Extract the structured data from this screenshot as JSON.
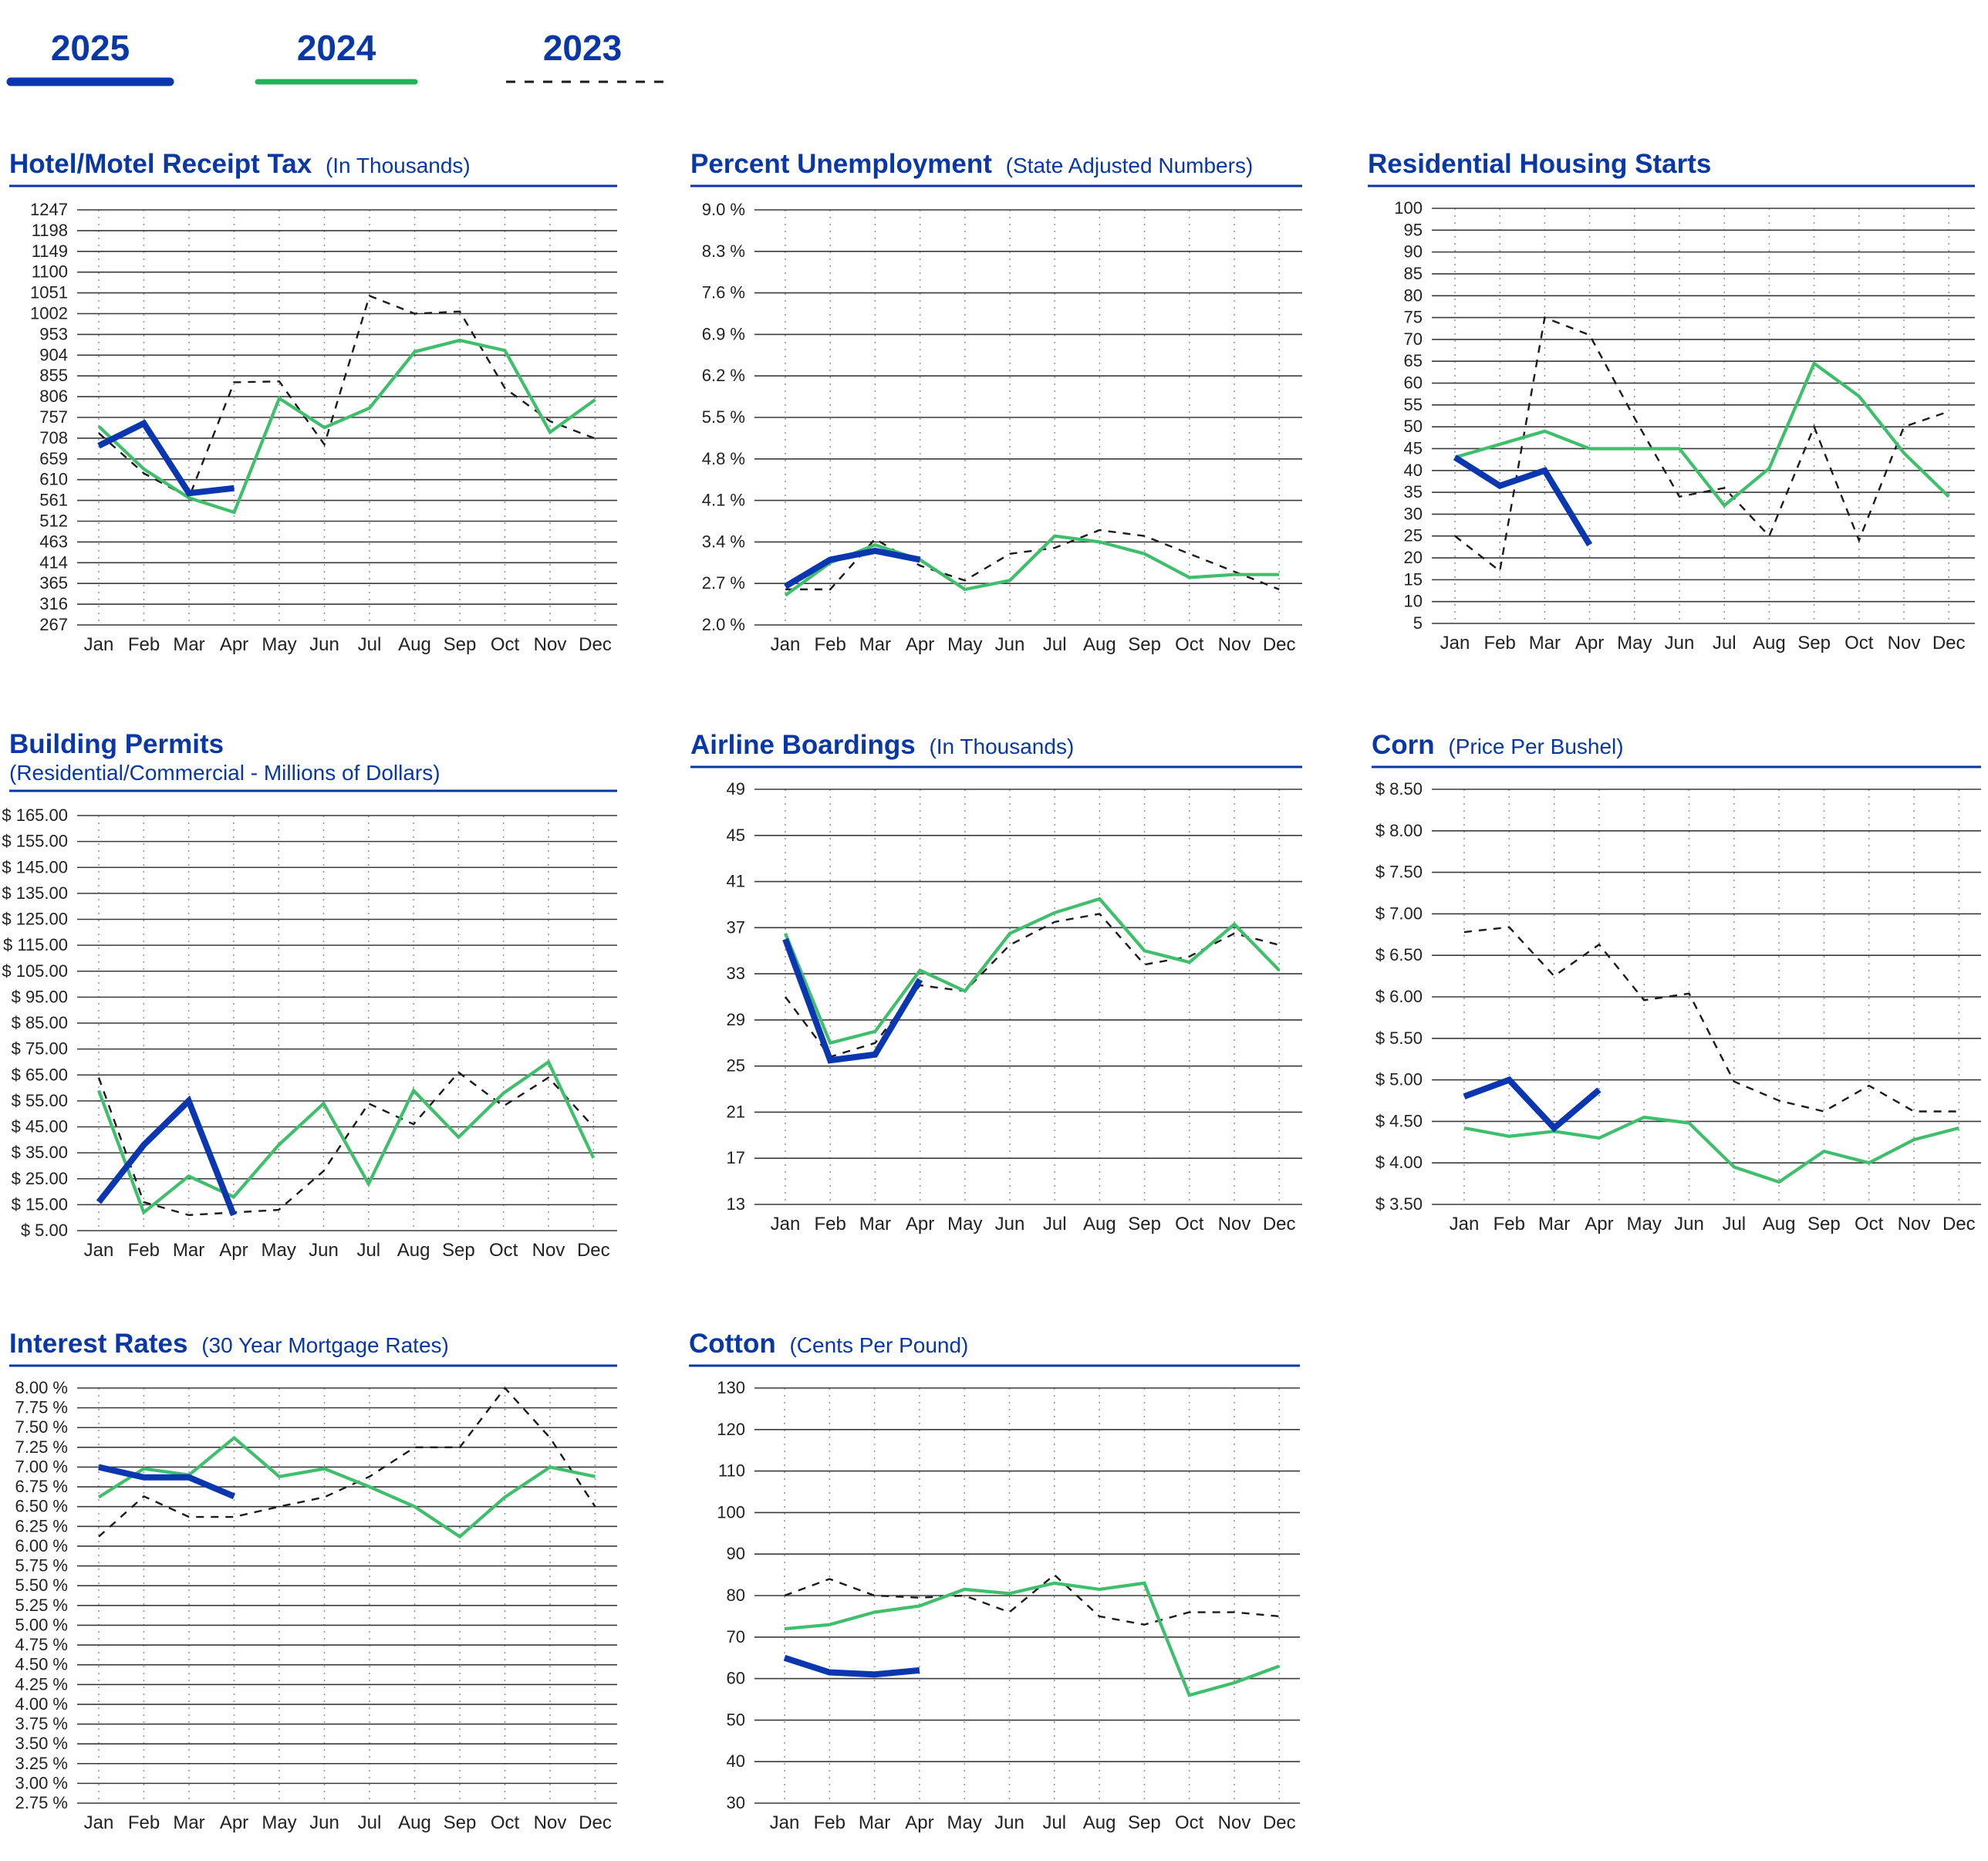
{
  "colors": {
    "y2025": "#0a37b0",
    "y2024": "#3fbf6b",
    "y2023": "#1a1a1a",
    "title": "#0a37a6",
    "grid": "#333333"
  },
  "legend": [
    {
      "label": "2025",
      "style": "thick-blue"
    },
    {
      "label": "2024",
      "style": "green"
    },
    {
      "label": "2023",
      "style": "dashed-black"
    }
  ],
  "chart_data": [
    {
      "type": "line",
      "title": "Hotel/Motel Receipt Tax",
      "subtitle": "(In Thousands)",
      "categories": [
        "Jan",
        "Feb",
        "Mar",
        "Apr",
        "May",
        "Jun",
        "Jul",
        "Aug",
        "Sep",
        "Oct",
        "Nov",
        "Dec"
      ],
      "yticks": [
        "1247",
        "1198",
        "1149",
        "1100",
        "1051",
        "1002",
        "953",
        "904",
        "855",
        "806",
        "757",
        "708",
        "659",
        "610",
        "561",
        "512",
        "463",
        "414",
        "365",
        "316",
        "267"
      ],
      "ylim": [
        267,
        1247
      ],
      "series": [
        {
          "name": "2025",
          "values": [
            690,
            743,
            578,
            590,
            null,
            null,
            null,
            null,
            null,
            null,
            null,
            null
          ]
        },
        {
          "name": "2024",
          "values": [
            736,
            635,
            567,
            533,
            802,
            733,
            779,
            912,
            939,
            915,
            722,
            799
          ]
        },
        {
          "name": "2023",
          "values": [
            720,
            625,
            568,
            840,
            842,
            693,
            1044,
            1002,
            1007,
            826,
            748,
            707
          ]
        }
      ],
      "grid": true
    },
    {
      "type": "line",
      "title": "Percent Unemployment",
      "subtitle": "(State Adjusted Numbers)",
      "categories": [
        "Jan",
        "Feb",
        "Mar",
        "Apr",
        "May",
        "Jun",
        "Jul",
        "Aug",
        "Sep",
        "Oct",
        "Nov",
        "Dec"
      ],
      "yticks": [
        "9.0 %",
        "8.3 %",
        "7.6 %",
        "6.9 %",
        "6.2 %",
        "5.5 %",
        "4.8 %",
        "4.1 %",
        "3.4 %",
        "2.7 %",
        "2.0 %"
      ],
      "ylim": [
        2.0,
        9.0
      ],
      "series": [
        {
          "name": "2025",
          "values": [
            2.65,
            3.1,
            3.25,
            3.1,
            null,
            null,
            null,
            null,
            null,
            null,
            null,
            null
          ]
        },
        {
          "name": "2024",
          "values": [
            2.5,
            3.05,
            3.35,
            3.1,
            2.6,
            2.75,
            3.5,
            3.4,
            3.2,
            2.8,
            2.85,
            2.85
          ]
        },
        {
          "name": "2023",
          "values": [
            2.6,
            2.6,
            3.45,
            3.0,
            2.75,
            3.2,
            3.3,
            3.6,
            3.5,
            3.2,
            2.9,
            2.6
          ]
        }
      ],
      "grid": true
    },
    {
      "type": "line",
      "title": "Residential Housing Starts",
      "subtitle": "",
      "categories": [
        "Jan",
        "Feb",
        "Mar",
        "Apr",
        "May",
        "Jun",
        "Jul",
        "Aug",
        "Sep",
        "Oct",
        "Nov",
        "Dec"
      ],
      "yticks": [
        "100",
        "95",
        "90",
        "85",
        "80",
        "75",
        "70",
        "65",
        "60",
        "55",
        "50",
        "45",
        "40",
        "35",
        "30",
        "25",
        "20",
        "15",
        "10",
        "5"
      ],
      "ylim": [
        5,
        100
      ],
      "series": [
        {
          "name": "2025",
          "values": [
            43,
            36.5,
            40,
            23,
            null,
            null,
            null,
            null,
            null,
            null,
            null,
            null
          ]
        },
        {
          "name": "2024",
          "values": [
            43,
            46,
            49,
            45,
            45,
            45,
            32,
            40.5,
            64.5,
            57,
            44,
            34
          ]
        },
        {
          "name": "2023",
          "values": [
            25,
            17,
            75,
            71,
            52,
            34,
            36,
            25,
            50,
            24,
            50,
            53.5
          ]
        }
      ],
      "grid": true
    },
    {
      "type": "line",
      "title": "Building Permits",
      "subtitle": "(Residential/Commercial - Millions of Dollars)",
      "categories": [
        "Jan",
        "Feb",
        "Mar",
        "Apr",
        "May",
        "Jun",
        "Jul",
        "Aug",
        "Sep",
        "Oct",
        "Nov",
        "Dec"
      ],
      "yticks": [
        "$ 165.00",
        "$ 155.00",
        "$ 145.00",
        "$ 135.00",
        "$ 125.00",
        "$ 115.00",
        "$ 105.00",
        "$ 95.00",
        "$ 85.00",
        "$ 75.00",
        "$ 65.00",
        "$ 55.00",
        "$ 45.00",
        "$ 35.00",
        "$ 25.00",
        "$ 15.00",
        "$ 5.00"
      ],
      "ylim": [
        5,
        165
      ],
      "series": [
        {
          "name": "2025",
          "values": [
            16,
            38,
            55,
            11,
            null,
            null,
            null,
            null,
            null,
            null,
            null,
            null
          ]
        },
        {
          "name": "2024",
          "values": [
            59,
            12,
            26,
            18,
            38,
            54,
            23,
            59,
            41,
            58,
            70,
            33
          ]
        },
        {
          "name": "2023",
          "values": [
            64,
            16,
            11,
            12,
            13,
            28,
            54,
            46,
            66,
            53,
            64,
            45
          ]
        }
      ],
      "grid": true
    },
    {
      "type": "line",
      "title": "Airline Boardings",
      "subtitle": "(In Thousands)",
      "categories": [
        "Jan",
        "Feb",
        "Mar",
        "Apr",
        "May",
        "Jun",
        "Jul",
        "Aug",
        "Sep",
        "Oct",
        "Nov",
        "Dec"
      ],
      "yticks": [
        "49",
        "45",
        "41",
        "37",
        "33",
        "29",
        "25",
        "21",
        "17",
        "13"
      ],
      "ylim": [
        13,
        49
      ],
      "series": [
        {
          "name": "2025",
          "values": [
            36,
            25.5,
            26,
            32.5,
            null,
            null,
            null,
            null,
            null,
            null,
            null,
            null
          ]
        },
        {
          "name": "2024",
          "values": [
            36.5,
            27,
            28,
            33.3,
            31.5,
            36.5,
            38.3,
            39.5,
            35,
            34,
            37.3,
            33.3
          ]
        },
        {
          "name": "2023",
          "values": [
            31,
            25.8,
            27,
            32,
            31.5,
            35.5,
            37.5,
            38.2,
            33.8,
            34.5,
            36.5,
            35.5
          ]
        }
      ],
      "grid": true
    },
    {
      "type": "line",
      "title": "Corn",
      "subtitle": "(Price Per Bushel)",
      "categories": [
        "Jan",
        "Feb",
        "Mar",
        "Apr",
        "May",
        "Jun",
        "Jul",
        "Aug",
        "Sep",
        "Oct",
        "Nov",
        "Dec"
      ],
      "yticks": [
        "$ 8.50",
        "$ 8.00",
        "$ 7.50",
        "$ 7.00",
        "$ 6.50",
        "$ 6.00",
        "$ 5.50",
        "$ 5.00",
        "$ 4.50",
        "$ 4.00",
        "$ 3.50"
      ],
      "ylim": [
        3.5,
        8.5
      ],
      "series": [
        {
          "name": "2025",
          "values": [
            4.8,
            5.0,
            4.42,
            4.88,
            null,
            null,
            null,
            null,
            null,
            null,
            null,
            null
          ]
        },
        {
          "name": "2024",
          "values": [
            4.42,
            4.32,
            4.38,
            4.3,
            4.55,
            4.48,
            3.95,
            3.77,
            4.14,
            4.0,
            4.28,
            4.42
          ]
        },
        {
          "name": "2023",
          "values": [
            6.78,
            6.84,
            6.25,
            6.63,
            5.96,
            6.04,
            4.98,
            4.75,
            4.62,
            4.93,
            4.62,
            4.62
          ]
        }
      ],
      "grid": true
    },
    {
      "type": "line",
      "title": "Interest Rates",
      "subtitle": "(30 Year Mortgage Rates)",
      "categories": [
        "Jan",
        "Feb",
        "Mar",
        "Apr",
        "May",
        "Jun",
        "Jul",
        "Aug",
        "Sep",
        "Oct",
        "Nov",
        "Dec"
      ],
      "yticks": [
        "8.00 %",
        "7.75 %",
        "7.50 %",
        "7.25 %",
        "7.00 %",
        "6.75 %",
        "6.50 %",
        "6.25 %",
        "6.00 %",
        "5.75 %",
        "5.50 %",
        "5.25 %",
        "5.00 %",
        "4.75 %",
        "4.50 %",
        "4.25 %",
        "4.00 %",
        "3.75 %",
        "3.50 %",
        "3.25 %",
        "3.00 %",
        "2.75 %"
      ],
      "ylim": [
        2.75,
        8.0
      ],
      "series": [
        {
          "name": "2025",
          "values": [
            7.0,
            6.87,
            6.87,
            6.63,
            null,
            null,
            null,
            null,
            null,
            null,
            null,
            null
          ]
        },
        {
          "name": "2024",
          "values": [
            6.62,
            6.98,
            6.9,
            7.37,
            6.88,
            6.98,
            6.75,
            6.5,
            6.12,
            6.62,
            7.0,
            6.88
          ]
        },
        {
          "name": "2023",
          "values": [
            6.12,
            6.63,
            6.37,
            6.37,
            6.5,
            6.62,
            6.88,
            7.25,
            7.25,
            8.0,
            7.37,
            6.5
          ]
        }
      ],
      "grid": true
    },
    {
      "type": "line",
      "title": "Cotton",
      "subtitle": "(Cents Per Pound)",
      "categories": [
        "Jan",
        "Feb",
        "Mar",
        "Apr",
        "May",
        "Jun",
        "Jul",
        "Aug",
        "Sep",
        "Oct",
        "Nov",
        "Dec"
      ],
      "yticks": [
        "130",
        "120",
        "110",
        "100",
        "90",
        "80",
        "70",
        "60",
        "50",
        "40",
        "30"
      ],
      "ylim": [
        30,
        130
      ],
      "series": [
        {
          "name": "2025",
          "values": [
            65,
            61.5,
            61,
            62,
            null,
            null,
            null,
            null,
            null,
            null,
            null,
            null
          ]
        },
        {
          "name": "2024",
          "values": [
            72,
            73,
            76,
            77.5,
            81.5,
            80.5,
            83,
            81.5,
            83,
            56,
            59,
            63
          ]
        },
        {
          "name": "2023",
          "values": [
            80,
            84,
            80,
            79.5,
            80,
            76,
            85,
            75,
            73,
            76,
            76,
            75
          ]
        }
      ],
      "grid": true
    }
  ]
}
